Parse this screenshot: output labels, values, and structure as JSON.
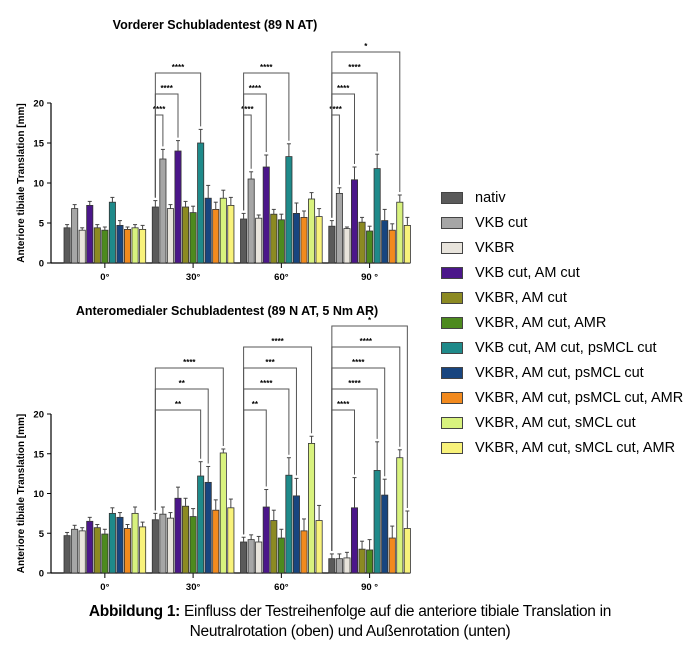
{
  "legend": [
    {
      "label": "nativ",
      "color": "#5a5a5a"
    },
    {
      "label": "VKB cut",
      "color": "#a6a6a6"
    },
    {
      "label": "VKBR",
      "color": "#e8e4dc"
    },
    {
      "label": "VKB cut, AM cut",
      "color": "#4b168a"
    },
    {
      "label": "VKBR, AM cut",
      "color": "#8c8a22"
    },
    {
      "label": "VKBR, AM cut, AMR",
      "color": "#4d8a1e"
    },
    {
      "label": "VKB cut, AM cut, psMCL cut",
      "color": "#1f8a8a"
    },
    {
      "label": "VKBR, AM cut, psMCL cut",
      "color": "#18457f"
    },
    {
      "label": "VKBR, AM cut, psMCL cut, AMR",
      "color": "#f28a1e"
    },
    {
      "label": "VKBR, AM cut, sMCL cut",
      "color": "#d8f27e"
    },
    {
      "label": "VKBR, AM cut, sMCL cut, AMR",
      "color": "#f8f27a"
    }
  ],
  "caption": {
    "bold": "Abbildung 1:",
    "line1": " Einfluss der Testreihenfolge auf die anteriore tibiale Translation in",
    "line2": "Neutralrotation (oben) und Außenrotation (unten)"
  },
  "chart_data": [
    {
      "type": "bar",
      "title": "Vorderer Schubladentest (89 N AT)",
      "xlabel": "",
      "ylabel": "Anteriore tibiale Translation [mm]",
      "ylim": [
        0,
        20
      ],
      "yticks": [
        "0",
        "5",
        "10",
        "15",
        "20"
      ],
      "categories": [
        "0°",
        "30°",
        "60°",
        "90 °"
      ],
      "grid": false,
      "legend_position": "right",
      "series": [
        {
          "name": "nativ",
          "values": [
            4.4,
            7.0,
            5.5,
            4.6
          ],
          "errors": [
            0.4,
            0.8,
            0.7,
            0.7
          ]
        },
        {
          "name": "VKB cut",
          "values": [
            6.8,
            13.0,
            10.5,
            8.7
          ],
          "errors": [
            0.5,
            1.2,
            0.9,
            0.7
          ]
        },
        {
          "name": "VKBR",
          "values": [
            4.1,
            6.8,
            5.6,
            4.3
          ],
          "errors": [
            0.3,
            0.5,
            0.4,
            0.2
          ]
        },
        {
          "name": "VKB cut, AM cut",
          "values": [
            7.2,
            14.0,
            12.0,
            10.4
          ],
          "errors": [
            0.5,
            1.3,
            1.5,
            1.6
          ]
        },
        {
          "name": "VKBR, AM cut",
          "values": [
            4.4,
            7.0,
            6.1,
            5.1
          ],
          "errors": [
            0.4,
            0.7,
            0.6,
            0.6
          ]
        },
        {
          "name": "VKBR, AM cut, AMR",
          "values": [
            4.1,
            6.3,
            5.4,
            4.0
          ],
          "errors": [
            0.4,
            0.8,
            0.7,
            0.6
          ]
        },
        {
          "name": "VKB cut, AM cut, psMCL cut",
          "values": [
            7.6,
            15.0,
            13.3,
            11.8
          ],
          "errors": [
            0.6,
            1.7,
            1.6,
            1.8
          ]
        },
        {
          "name": "VKBR, AM cut, psMCL cut",
          "values": [
            4.7,
            8.1,
            6.2,
            5.3
          ],
          "errors": [
            0.6,
            1.6,
            1.3,
            1.4
          ]
        },
        {
          "name": "VKBR, AM cut, psMCL cut, AMR",
          "values": [
            4.2,
            6.7,
            5.7,
            4.1
          ],
          "errors": [
            0.3,
            0.9,
            0.8,
            0.8
          ]
        },
        {
          "name": "VKBR, AM cut, sMCL cut",
          "values": [
            4.4,
            8.1,
            8.0,
            7.6
          ],
          "errors": [
            0.4,
            1.0,
            0.8,
            0.9
          ]
        },
        {
          "name": "VKBR, AM cut, sMCL cut, AMR",
          "values": [
            4.2,
            7.2,
            5.8,
            4.7
          ],
          "errors": [
            0.5,
            1.0,
            1.0,
            1.0
          ]
        }
      ],
      "significance": [
        {
          "group": 1,
          "from": 0,
          "to": 1,
          "label": "****",
          "level": 0
        },
        {
          "group": 1,
          "from": 0,
          "to": 3,
          "label": "****",
          "level": 1
        },
        {
          "group": 1,
          "from": 0,
          "to": 6,
          "label": "****",
          "level": 2
        },
        {
          "group": 2,
          "from": 0,
          "to": 1,
          "label": "****",
          "level": 0
        },
        {
          "group": 2,
          "from": 0,
          "to": 3,
          "label": "****",
          "level": 1
        },
        {
          "group": 2,
          "from": 0,
          "to": 6,
          "label": "****",
          "level": 2
        },
        {
          "group": 3,
          "from": 0,
          "to": 1,
          "label": "****",
          "level": 0
        },
        {
          "group": 3,
          "from": 0,
          "to": 3,
          "label": "****",
          "level": 1
        },
        {
          "group": 3,
          "from": 0,
          "to": 6,
          "label": "****",
          "level": 2
        },
        {
          "group": 3,
          "from": 0,
          "to": 9,
          "label": "*",
          "level": 3
        }
      ]
    },
    {
      "type": "bar",
      "title": "Anteromedialer Schubladentest (89 N AT, 5 Nm AR)",
      "xlabel": "",
      "ylabel": "Anteriore tibiale Translation [mm]",
      "ylim": [
        0,
        20
      ],
      "yticks": [
        "0",
        "5",
        "10",
        "15",
        "20"
      ],
      "categories": [
        "0°",
        "30°",
        "60°",
        "90 °"
      ],
      "grid": false,
      "legend_position": "right",
      "series": [
        {
          "name": "nativ",
          "values": [
            4.7,
            6.7,
            3.9,
            1.8
          ],
          "errors": [
            0.4,
            0.8,
            0.6,
            0.6
          ]
        },
        {
          "name": "VKB cut",
          "values": [
            5.5,
            7.4,
            4.2,
            1.8
          ],
          "errors": [
            0.5,
            0.9,
            0.6,
            0.6
          ]
        },
        {
          "name": "VKBR",
          "values": [
            5.3,
            6.9,
            3.9,
            1.9
          ],
          "errors": [
            0.4,
            0.7,
            0.7,
            0.7
          ]
        },
        {
          "name": "VKB cut, AM cut",
          "values": [
            6.5,
            9.4,
            8.3,
            8.2
          ],
          "errors": [
            0.5,
            1.4,
            2.2,
            3.8
          ]
        },
        {
          "name": "VKBR, AM cut",
          "values": [
            5.7,
            8.4,
            6.6,
            3.0
          ],
          "errors": [
            0.4,
            1.0,
            1.3,
            1.0
          ]
        },
        {
          "name": "VKBR, AM cut, AMR",
          "values": [
            4.9,
            7.1,
            4.4,
            2.9
          ],
          "errors": [
            0.6,
            1.0,
            1.1,
            1.3
          ]
        },
        {
          "name": "VKB cut, AM cut, psMCL cut",
          "values": [
            7.5,
            12.2,
            12.3,
            12.9
          ],
          "errors": [
            0.7,
            1.8,
            2.2,
            3.6
          ]
        },
        {
          "name": "VKBR, AM cut, psMCL cut",
          "values": [
            7.0,
            11.4,
            9.7,
            9.8
          ],
          "errors": [
            0.6,
            2.0,
            2.2,
            2.0
          ]
        },
        {
          "name": "VKBR, AM cut, psMCL cut, AMR",
          "values": [
            5.6,
            7.9,
            5.3,
            4.4
          ],
          "errors": [
            0.5,
            1.3,
            1.5,
            1.5
          ]
        },
        {
          "name": "VKBR, AM cut, sMCL cut",
          "values": [
            7.5,
            15.1,
            16.3,
            14.5
          ],
          "errors": [
            0.8,
            0.5,
            0.9,
            1.0
          ]
        },
        {
          "name": "VKBR, AM cut, sMCL cut, AMR",
          "values": [
            5.8,
            8.2,
            6.6,
            5.6
          ],
          "errors": [
            0.6,
            1.1,
            1.9,
            2.2
          ]
        }
      ],
      "significance": [
        {
          "group": 1,
          "from": 0,
          "to": 6,
          "label": "**",
          "level": 0
        },
        {
          "group": 1,
          "from": 0,
          "to": 7,
          "label": "**",
          "level": 1
        },
        {
          "group": 1,
          "from": 0,
          "to": 9,
          "label": "****",
          "level": 2
        },
        {
          "group": 2,
          "from": 0,
          "to": 3,
          "label": "**",
          "level": 0
        },
        {
          "group": 2,
          "from": 0,
          "to": 6,
          "label": "****",
          "level": 1
        },
        {
          "group": 2,
          "from": 0,
          "to": 7,
          "label": "***",
          "level": 2
        },
        {
          "group": 2,
          "from": 0,
          "to": 9,
          "label": "****",
          "level": 3
        },
        {
          "group": 3,
          "from": 0,
          "to": 3,
          "label": "****",
          "level": 0
        },
        {
          "group": 3,
          "from": 0,
          "to": 6,
          "label": "****",
          "level": 1
        },
        {
          "group": 3,
          "from": 0,
          "to": 7,
          "label": "****",
          "level": 2
        },
        {
          "group": 3,
          "from": 0,
          "to": 9,
          "label": "****",
          "level": 3
        },
        {
          "group": 3,
          "from": 0,
          "to": 10,
          "label": "*",
          "level": 4
        }
      ]
    }
  ]
}
